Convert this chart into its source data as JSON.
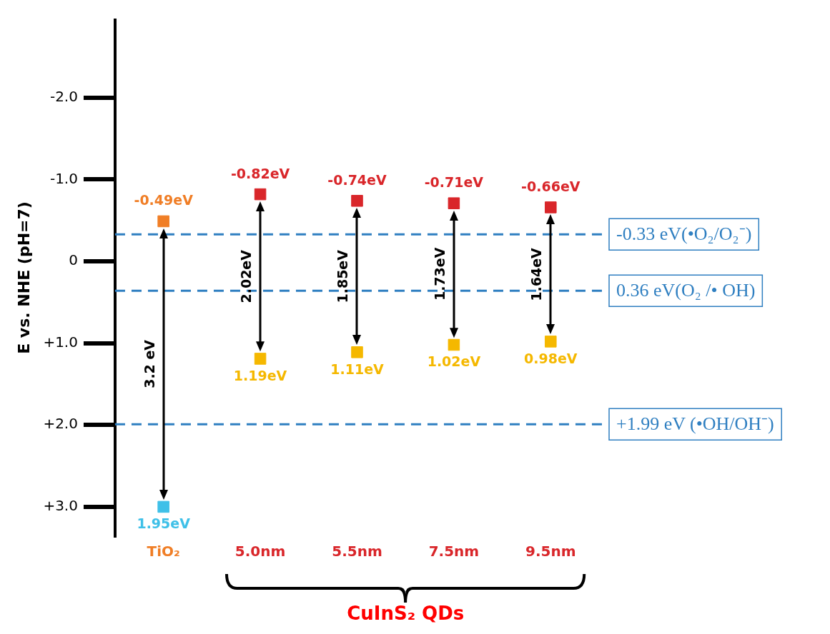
{
  "chart_data": {
    "type": "scatter",
    "ylabel": "E vs. NHE (pH=7)",
    "categories": [
      "TiO₂",
      "5.0nm",
      "5.5nm",
      "7.5nm",
      "9.5nm"
    ],
    "series": [
      {
        "colors": [
          "#f07e26",
          "#d9262a",
          "#d9262a",
          "#d9262a",
          "#d9262a"
        ],
        "values": [
          -0.49,
          -0.82,
          -0.74,
          -0.71,
          -0.66
        ],
        "value_labels": [
          "-0.49eV",
          "-0.82eV",
          "-0.74eV",
          "-0.71eV",
          "-0.66eV"
        ]
      },
      {
        "colors": [
          "#3fc0e8",
          "#f5b800",
          "#f5b800",
          "#f5b800",
          "#f5b800"
        ],
        "values": [
          3.0,
          1.19,
          1.11,
          1.02,
          0.98
        ],
        "value_labels": [
          null,
          "1.19eV",
          "1.11eV",
          "1.02eV",
          "0.98eV"
        ]
      }
    ],
    "marker": "square",
    "grid": false,
    "ylim": [
      3.35,
      -2.95
    ],
    "yticks": [
      {
        "value": -2,
        "label": "-2.0"
      },
      {
        "value": -1,
        "label": "-1.0"
      },
      0,
      {
        "value": 1,
        "label": "+1.0"
      },
      {
        "value": 2,
        "label": "+2.0"
      },
      {
        "value": 3,
        "label": "+3.0"
      }
    ],
    "ref_lines": [
      {
        "axis": "y",
        "value": -0.33,
        "label": "-0.33 eV(•O₂/O₂⁻)",
        "color": "#2f7fc1",
        "line_style": "dashed"
      },
      {
        "axis": "y",
        "value": 0.36,
        "label": "0.36 eV(O₂ /• OH)",
        "color": "#2f7fc1",
        "line_style": "dashed"
      },
      {
        "axis": "y",
        "value": 1.99,
        "label": "+1.99 eV (•OH/OH⁻)",
        "color": "#2f7fc1",
        "line_style": "dashed"
      }
    ],
    "annotations": [
      "3.2 eV",
      "2.02eV",
      "1.85eV",
      "1.73eV",
      "1.64eV",
      "CuInS₂ QDs",
      {
        "text": "1.95eV",
        "x": "TiO₂",
        "y": 3.0
      }
    ]
  }
}
